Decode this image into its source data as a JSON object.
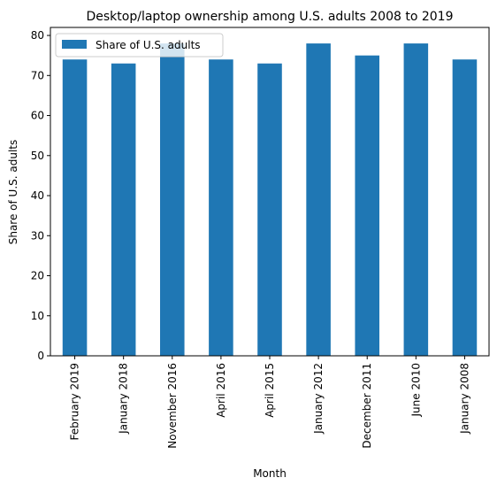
{
  "chart_data": {
    "type": "bar",
    "title": "Desktop/laptop ownership among U.S. adults 2008 to 2019",
    "xlabel": "Month",
    "ylabel": "Share of U.S. adults",
    "categories": [
      "February 2019",
      "January 2018",
      "November 2016",
      "April 2016",
      "April 2015",
      "January 2012",
      "December 2011",
      "June 2010",
      "January 2008"
    ],
    "series": [
      {
        "name": "Share of U.S. adults",
        "values": [
          74,
          73,
          78,
          74,
          73,
          78,
          75,
          78,
          74
        ],
        "color": "#1f77b4"
      }
    ],
    "ylim": [
      0,
      82
    ],
    "yticks": [
      0,
      10,
      20,
      30,
      40,
      50,
      60,
      70,
      80
    ],
    "grid": false,
    "legend_position": "top-left"
  }
}
